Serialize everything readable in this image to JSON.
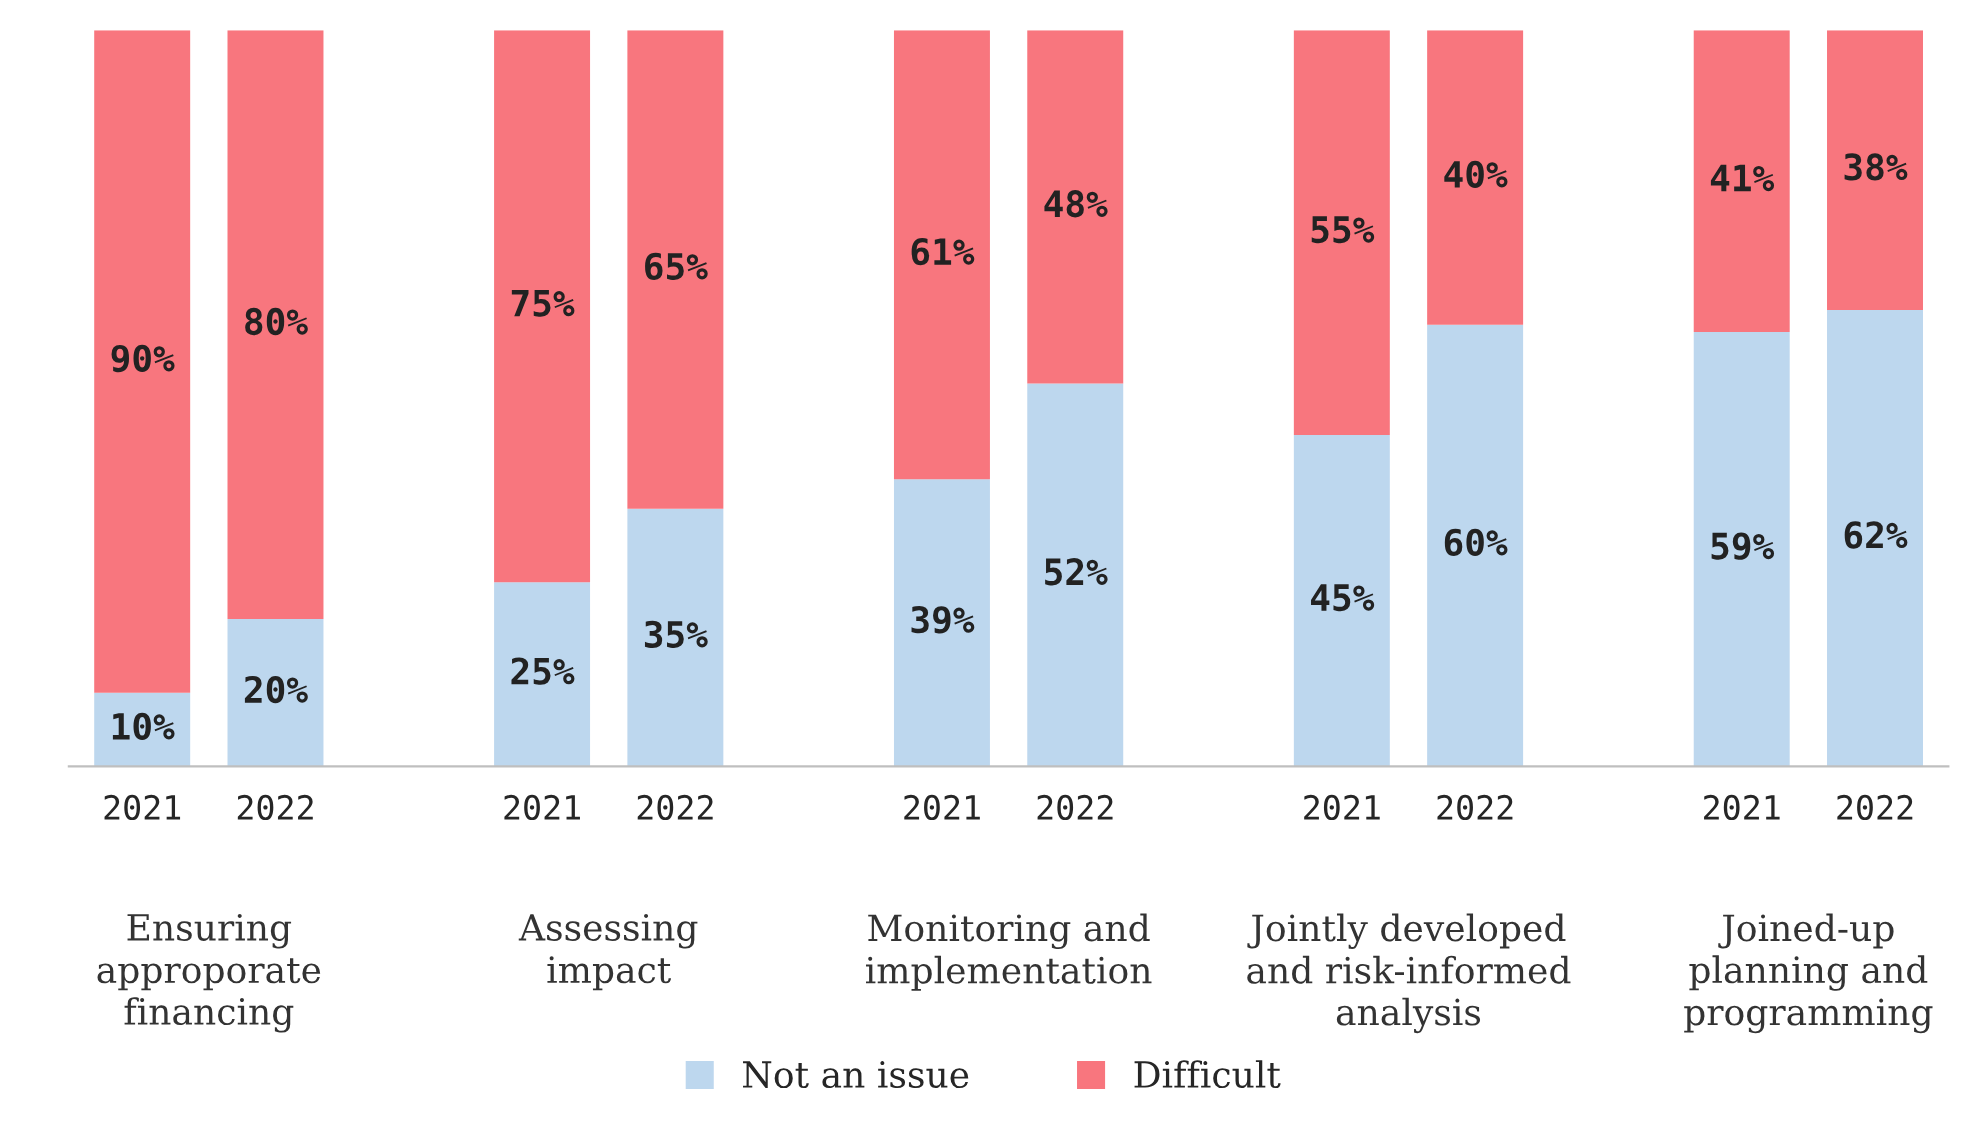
{
  "chart_data": {
    "type": "bar",
    "stacked": true,
    "legend": "bottom",
    "grid": false,
    "categories": [
      "2021",
      "2022",
      "2021",
      "2022",
      "2021",
      "2022",
      "2021",
      "2022",
      "2021",
      "2022"
    ],
    "series": [
      {
        "name": "Not an issue",
        "color": "#bdd7ee",
        "values": [
          10,
          20,
          25,
          35,
          39,
          52,
          45,
          60,
          59,
          62
        ],
        "value_labels": [
          "10%",
          "20%",
          "25%",
          "35%",
          "39%",
          "52%",
          "45%",
          "60%",
          "59%",
          "62%"
        ]
      },
      {
        "name": "Difficult",
        "color": "#f8767e",
        "values": [
          90,
          80,
          75,
          65,
          61,
          48,
          55,
          40,
          41,
          38
        ],
        "value_labels": [
          "90%",
          "80%",
          "75%",
          "65%",
          "61%",
          "48%",
          "55%",
          "40%",
          "41%",
          "38%"
        ]
      }
    ],
    "annotations": [
      "Ensuring\napproporate\nfinancing",
      "Assessing\nimpact",
      "Monitoring and\nimplementation",
      "Jointly developed\nand risk-informed\nanalysis",
      "Joined-up\nplanning and\nprogramming"
    ]
  }
}
